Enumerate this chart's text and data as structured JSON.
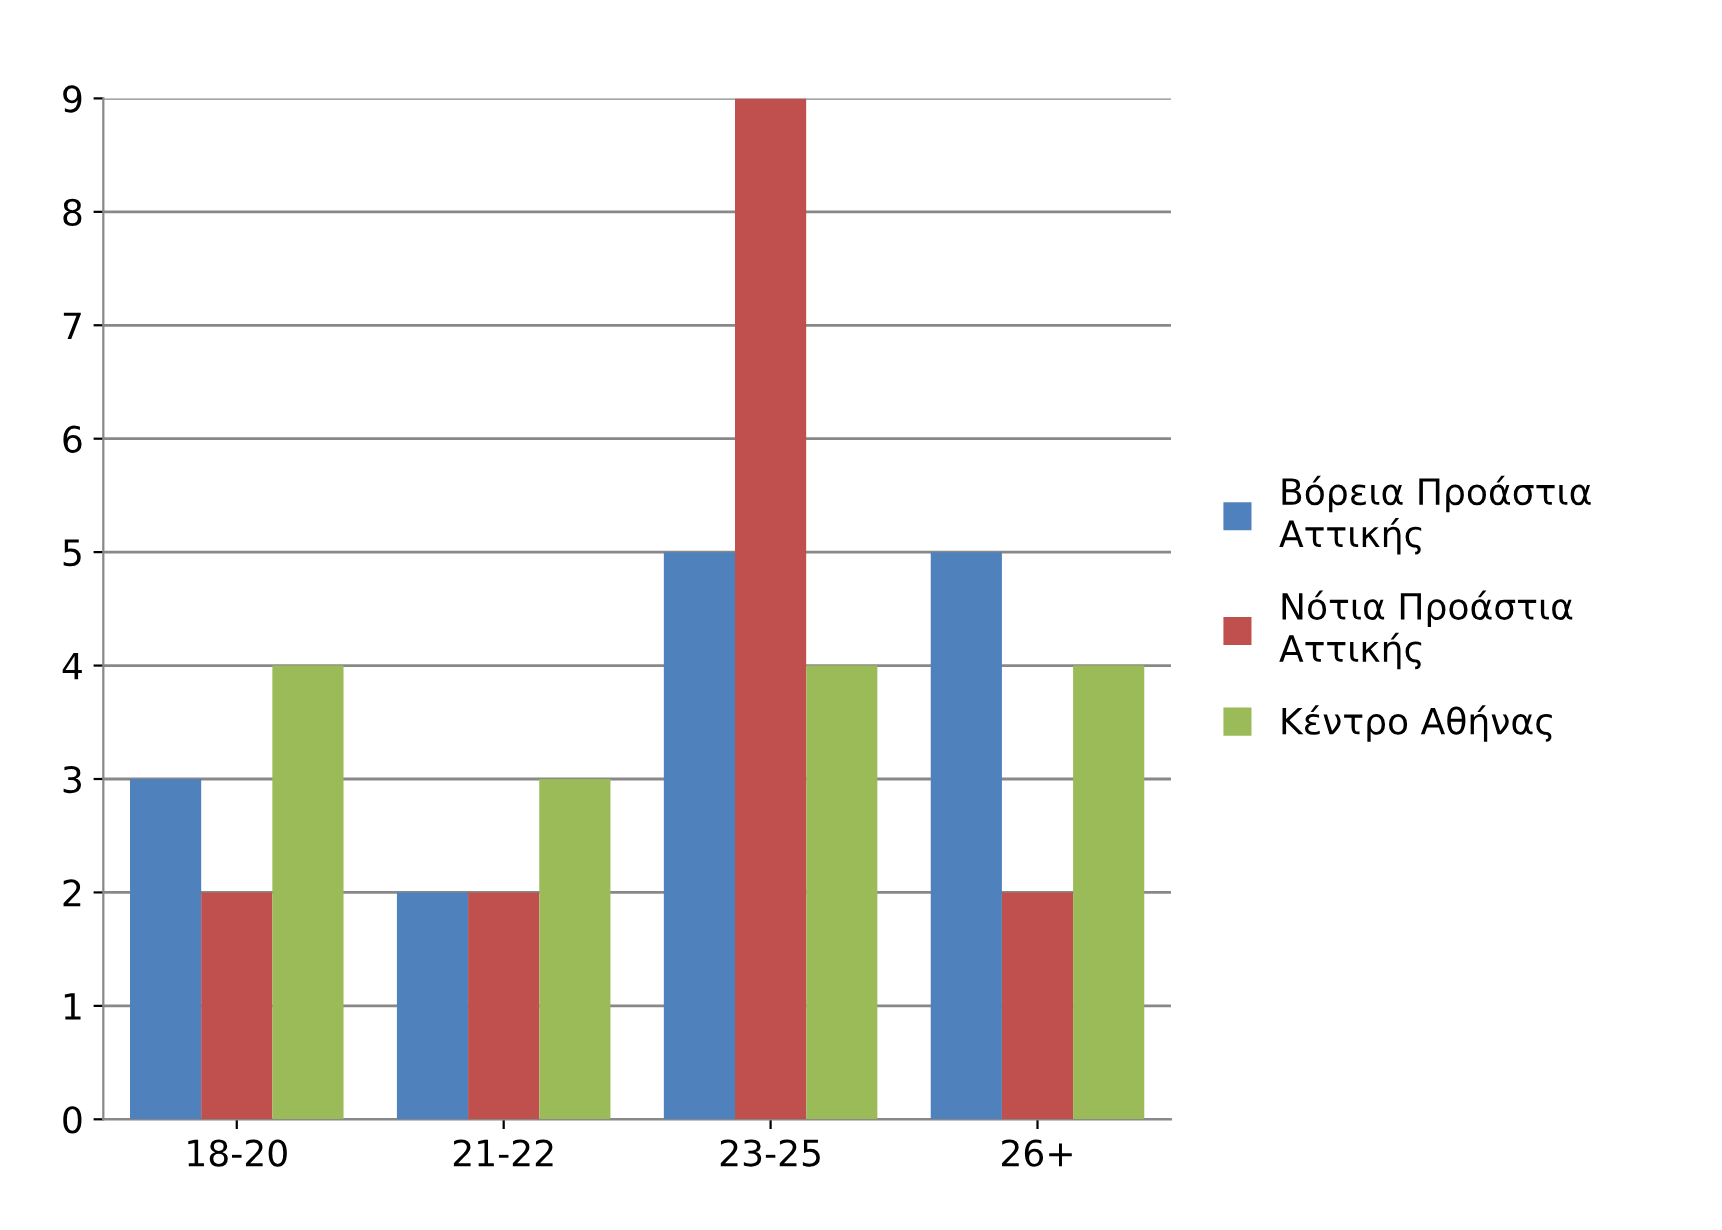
{
  "chart_data": {
    "type": "bar",
    "categories": [
      "18-20",
      "21-22",
      "23-25",
      "26+"
    ],
    "series": [
      {
        "name": "Βόρεια Προάστια Αττικής",
        "color": "#4f81bd",
        "values": [
          3,
          2,
          5,
          5
        ]
      },
      {
        "name": "Νότια Προάστια Αττικής",
        "color": "#c0504d",
        "values": [
          2,
          2,
          9,
          2
        ]
      },
      {
        "name": "Κέντρο Αθήνας",
        "color": "#9bbb59",
        "values": [
          4,
          3,
          4,
          4
        ]
      }
    ],
    "ylim": [
      0,
      9
    ],
    "yticks": [
      0,
      1,
      2,
      3,
      4,
      5,
      6,
      7,
      8,
      9
    ],
    "grid": "y",
    "legend": "right"
  }
}
